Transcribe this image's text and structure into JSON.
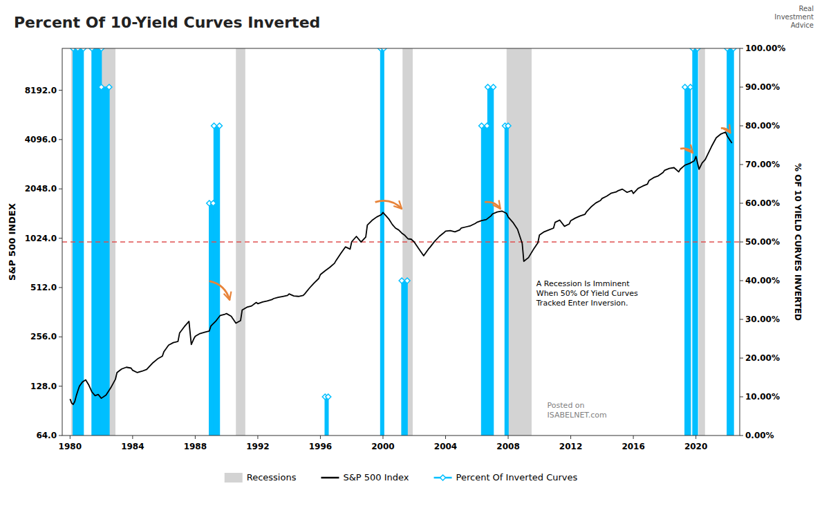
{
  "chart_data": {
    "type": "line",
    "title": "Percent Of 10-Yield Curves Inverted",
    "ylabel": "S&P 500 INDEX",
    "y2label": "% OF 10 YIELD CURVES INVERTED",
    "xlim": [
      1979.5,
      2022.8
    ],
    "xticks": [
      1980,
      1984,
      1988,
      1992,
      1996,
      2000,
      2004,
      2008,
      2012,
      2016,
      2020
    ],
    "log": "y",
    "ylim": [
      64,
      14745.6
    ],
    "yticks": [
      {
        "value": 64.0,
        "label": "64.0"
      },
      {
        "value": 128.0,
        "label": "128.0"
      },
      {
        "value": 256.0,
        "label": "256.0"
      },
      {
        "value": 512.0,
        "label": "512.0"
      },
      {
        "value": 1024.0,
        "label": "1024.0"
      },
      {
        "value": 2048.0,
        "label": "2048.0"
      },
      {
        "value": 4096.0,
        "label": "4096.0"
      },
      {
        "value": 8192.0,
        "label": "8192.0"
      }
    ],
    "y2lim": [
      0,
      100
    ],
    "y2ticks": [
      {
        "value": 0,
        "label": "0.00%"
      },
      {
        "value": 10,
        "label": "10.00%"
      },
      {
        "value": 20,
        "label": "20.00%"
      },
      {
        "value": 30,
        "label": "30.00%"
      },
      {
        "value": 40,
        "label": "40.00%"
      },
      {
        "value": 50,
        "label": "50.00%"
      },
      {
        "value": 60,
        "label": "60.00%"
      },
      {
        "value": 70,
        "label": "70.00%"
      },
      {
        "value": 80,
        "label": "80.00%"
      },
      {
        "value": 90,
        "label": "90.00%"
      },
      {
        "value": 100,
        "label": "100.00%"
      }
    ],
    "grid": false,
    "legend": "bottom",
    "series": [
      {
        "name": "Recessions",
        "type": "span",
        "color": "#d3d3d3",
        "x_start": [
          1980.08,
          1981.5,
          1990.6,
          2001.25,
          2007.9,
          2020.17
        ],
        "x_end": [
          1980.5,
          1982.9,
          1991.2,
          2001.9,
          2009.5,
          2020.58
        ]
      },
      {
        "name": "S&P 500 Index",
        "type": "line",
        "color": "#000000",
        "x": [
          1980.0,
          1980.1,
          1980.2,
          1980.3,
          1980.4,
          1980.5,
          1980.6,
          1980.7,
          1980.8,
          1980.9,
          1981.0,
          1981.2,
          1981.4,
          1981.6,
          1981.8,
          1982.0,
          1982.3,
          1982.6,
          1982.9,
          1983.0,
          1983.3,
          1983.6,
          1983.9,
          1984.0,
          1984.3,
          1984.6,
          1984.9,
          1985.0,
          1985.3,
          1985.6,
          1985.9,
          1986.0,
          1986.3,
          1986.6,
          1986.9,
          1987.0,
          1987.3,
          1987.6,
          1987.75,
          1987.9,
          1988.0,
          1988.3,
          1988.6,
          1988.9,
          1989.0,
          1989.3,
          1989.6,
          1989.9,
          1990.0,
          1990.3,
          1990.6,
          1990.9,
          1991.0,
          1991.3,
          1991.6,
          1991.9,
          1992.0,
          1992.3,
          1992.6,
          1992.9,
          1993.0,
          1993.3,
          1993.6,
          1993.9,
          1994.0,
          1994.3,
          1994.6,
          1994.9,
          1995.0,
          1995.3,
          1995.6,
          1995.9,
          1996.0,
          1996.3,
          1996.6,
          1996.9,
          1997.0,
          1997.3,
          1997.6,
          1997.9,
          1998.0,
          1998.3,
          1998.6,
          1998.9,
          1999.0,
          1999.3,
          1999.6,
          1999.9,
          2000.0,
          2000.2,
          2000.4,
          2000.6,
          2000.8,
          2001.0,
          2001.2,
          2001.4,
          2001.6,
          2001.8,
          2002.0,
          2002.3,
          2002.6,
          2002.9,
          2003.0,
          2003.3,
          2003.6,
          2003.9,
          2004.0,
          2004.3,
          2004.6,
          2004.9,
          2005.0,
          2005.3,
          2005.6,
          2005.9,
          2006.0,
          2006.3,
          2006.6,
          2006.9,
          2007.0,
          2007.3,
          2007.6,
          2007.9,
          2008.0,
          2008.3,
          2008.6,
          2008.9,
          2009.0,
          2009.3,
          2009.6,
          2009.9,
          2010.0,
          2010.3,
          2010.6,
          2010.9,
          2011.0,
          2011.3,
          2011.6,
          2011.9,
          2012.0,
          2012.3,
          2012.6,
          2012.9,
          2013.0,
          2013.3,
          2013.6,
          2013.9,
          2014.0,
          2014.3,
          2014.6,
          2014.9,
          2015.0,
          2015.3,
          2015.6,
          2015.9,
          2016.0,
          2016.3,
          2016.6,
          2016.9,
          2017.0,
          2017.3,
          2017.6,
          2017.9,
          2018.0,
          2018.3,
          2018.6,
          2018.9,
          2019.0,
          2019.3,
          2019.6,
          2019.9,
          2020.0,
          2020.2,
          2020.4,
          2020.6,
          2021.0,
          2021.3,
          2021.6,
          2021.9,
          2022.0,
          2022.3
        ],
        "values": [
          107,
          101,
          99,
          103,
          112,
          120,
          128,
          132,
          136,
          138,
          140,
          130,
          118,
          112,
          114,
          108,
          113,
          125,
          141,
          155,
          163,
          167,
          165,
          160,
          155,
          158,
          162,
          166,
          178,
          188,
          195,
          208,
          228,
          236,
          240,
          270,
          295,
          318,
          230,
          248,
          258,
          268,
          273,
          278,
          298,
          318,
          346,
          352,
          355,
          342,
          310,
          322,
          373,
          388,
          395,
          415,
          408,
          418,
          424,
          432,
          438,
          446,
          452,
          458,
          468,
          455,
          452,
          458,
          468,
          508,
          546,
          582,
          614,
          648,
          680,
          720,
          748,
          825,
          906,
          878,
          974,
          1050,
          970,
          1040,
          1230,
          1315,
          1380,
          1425,
          1470,
          1400,
          1330,
          1240,
          1180,
          1150,
          1100,
          1065,
          1015,
          1010,
          970,
          880,
          800,
          878,
          900,
          980,
          1050,
          1107,
          1130,
          1140,
          1120,
          1150,
          1180,
          1200,
          1220,
          1260,
          1280,
          1310,
          1330,
          1400,
          1440,
          1480,
          1500,
          1450,
          1380,
          1280,
          1160,
          950,
          740,
          780,
          870,
          960,
          1070,
          1120,
          1150,
          1180,
          1280,
          1320,
          1210,
          1250,
          1310,
          1360,
          1400,
          1430,
          1480,
          1590,
          1680,
          1740,
          1790,
          1850,
          1930,
          1960,
          1990,
          2040,
          1950,
          2000,
          1920,
          2060,
          2130,
          2190,
          2300,
          2400,
          2460,
          2580,
          2660,
          2730,
          2760,
          2600,
          2700,
          2860,
          2930,
          3040,
          3230,
          2700,
          2950,
          3100,
          3720,
          4200,
          4430,
          4550,
          4300,
          3900
        ]
      },
      {
        "name": "Percent Of Inverted Curves",
        "type": "area",
        "axis": "y2",
        "color": "#00bfff",
        "marker": "diamond",
        "x_start": [
          1980.2,
          1980.5,
          1981.4,
          1982.0,
          1988.9,
          1989.2,
          1996.3,
          1999.85,
          2001.2,
          2006.3,
          2006.7,
          2007.8,
          2019.3,
          2019.8,
          2022.0
        ],
        "x_end": [
          1980.45,
          1980.85,
          1982.0,
          1982.5,
          1989.15,
          1989.55,
          1996.5,
          2000.05,
          2001.55,
          2006.65,
          2007.05,
          2008.0,
          2019.65,
          2020.1,
          2022.4
        ],
        "values": [
          100,
          100,
          100,
          90,
          60,
          80,
          10,
          100,
          40,
          80,
          90,
          80,
          90,
          100,
          100
        ]
      }
    ],
    "reference_lines": [
      {
        "axis": "y2",
        "value": 50,
        "color": "#e05050",
        "line_style": "dashed"
      }
    ],
    "arrows": [
      {
        "x_start": 1988.9,
        "y_start": 560,
        "x_end": 1990.2,
        "y_end": 430,
        "color": "#e8843a"
      },
      {
        "x_start": 1999.5,
        "y_start": 1700,
        "x_end": 2001.2,
        "y_end": 1550,
        "color": "#e8843a"
      },
      {
        "x_start": 2006.5,
        "y_start": 1700,
        "x_end": 2007.5,
        "y_end": 1550,
        "color": "#e8843a"
      },
      {
        "x_start": 2019.0,
        "y_start": 3600,
        "x_end": 2019.8,
        "y_end": 3400,
        "color": "#e8843a"
      },
      {
        "x_start": 2021.6,
        "y_start": 4800,
        "x_end": 2022.2,
        "y_end": 4500,
        "color": "#e8843a"
      }
    ],
    "annotations": [
      {
        "text": "A Recession Is Imminent\nWhen 50% Of Yield Curves\nTracked Enter Inversion.",
        "x": 2009.8,
        "y": 580,
        "color": "#000000"
      },
      {
        "text": "Posted on\nISABELNET.com",
        "x": 2010.5,
        "y": 105,
        "color": "#808080"
      },
      {
        "text": "Real\nInvestment\nAdvice",
        "color": "#555555"
      }
    ]
  }
}
